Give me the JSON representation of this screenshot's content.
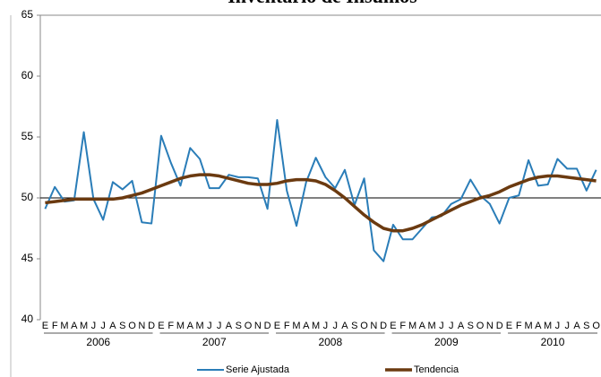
{
  "chart_data": {
    "type": "line",
    "title": "Inventario de Insumos",
    "categories": [
      "E",
      "F",
      "M",
      "A",
      "M",
      "J",
      "J",
      "A",
      "S",
      "O",
      "N",
      "D",
      "E",
      "F",
      "M",
      "A",
      "M",
      "J",
      "J",
      "A",
      "S",
      "O",
      "N",
      "D",
      "E",
      "F",
      "M",
      "A",
      "M",
      "J",
      "J",
      "A",
      "S",
      "O",
      "N",
      "D",
      "E",
      "F",
      "M",
      "A",
      "M",
      "J",
      "J",
      "A",
      "S",
      "O",
      "N",
      "D",
      "E",
      "F",
      "M",
      "A",
      "M",
      "J",
      "J",
      "A",
      "S",
      "O"
    ],
    "years": [
      "2006",
      "2007",
      "2008",
      "2009",
      "2010"
    ],
    "ylim": [
      40,
      65
    ],
    "yticks": [
      40,
      45,
      50,
      55,
      60,
      65
    ],
    "reference_line": 50,
    "series": [
      {
        "name": "Serie Ajustada",
        "color": "#2a7db8",
        "values": [
          49.1,
          50.9,
          49.7,
          49.8,
          55.4,
          49.9,
          48.2,
          51.3,
          50.7,
          51.4,
          48.0,
          47.9,
          55.1,
          52.9,
          51.0,
          54.1,
          53.2,
          50.8,
          50.8,
          51.9,
          51.7,
          51.7,
          51.6,
          49.1,
          56.4,
          50.6,
          47.7,
          51.3,
          53.3,
          51.7,
          50.8,
          52.3,
          49.4,
          51.6,
          45.7,
          44.8,
          47.8,
          46.6,
          46.6,
          47.5,
          48.4,
          48.5,
          49.5,
          49.9,
          51.5,
          50.2,
          49.5,
          47.9,
          50.0,
          50.2,
          53.1,
          51.0,
          51.1,
          53.2,
          52.4,
          52.4,
          50.6,
          52.3
        ]
      },
      {
        "name": "Tendencia",
        "color": "#6b3a10",
        "values": [
          49.6,
          49.7,
          49.8,
          49.9,
          49.9,
          49.9,
          49.9,
          49.9,
          50.0,
          50.2,
          50.4,
          50.7,
          51.0,
          51.3,
          51.6,
          51.8,
          51.9,
          51.9,
          51.8,
          51.6,
          51.4,
          51.2,
          51.1,
          51.1,
          51.2,
          51.4,
          51.5,
          51.5,
          51.4,
          51.1,
          50.6,
          50.0,
          49.3,
          48.6,
          48.0,
          47.5,
          47.3,
          47.3,
          47.5,
          47.8,
          48.2,
          48.6,
          49.0,
          49.4,
          49.7,
          50.0,
          50.2,
          50.5,
          50.9,
          51.2,
          51.5,
          51.7,
          51.8,
          51.8,
          51.7,
          51.6,
          51.5,
          51.4
        ]
      }
    ]
  }
}
